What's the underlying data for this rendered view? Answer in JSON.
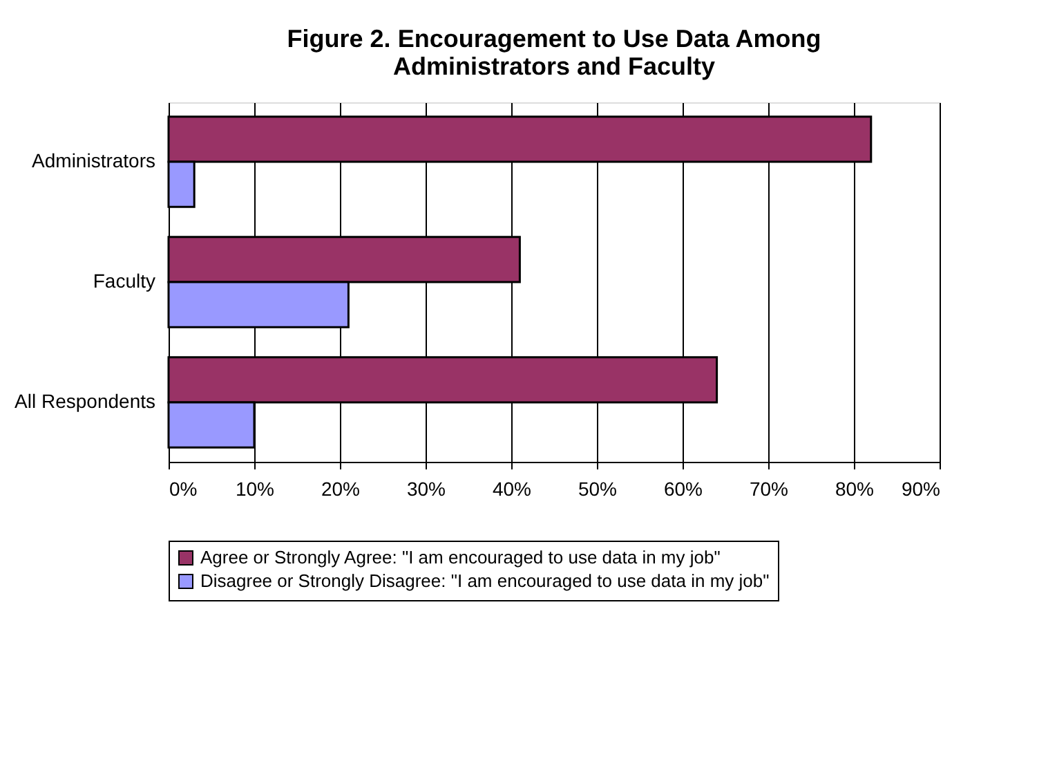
{
  "chart_data": {
    "type": "bar",
    "orientation": "horizontal",
    "title": [
      "Figure 2. Encouragement to Use Data Among",
      "Administrators and Faculty"
    ],
    "categories": [
      "Administrators",
      "Faculty",
      "All Respondents"
    ],
    "series": [
      {
        "name": "Agree or Strongly Agree: \"I am encouraged to use data in my job\"",
        "color": "#993366",
        "values": [
          82,
          41,
          64
        ]
      },
      {
        "name": "Disagree or Strongly Disagree: \"I am encouraged to use data in my job\"",
        "color": "#9999ff",
        "values": [
          3,
          21,
          10
        ]
      }
    ],
    "xlim": [
      0,
      90
    ],
    "xticks": [
      {
        "value": 0,
        "label": "0%"
      },
      {
        "value": 10,
        "label": "10%"
      },
      {
        "value": 20,
        "label": "20%"
      },
      {
        "value": 30,
        "label": "30%"
      },
      {
        "value": 40,
        "label": "40%"
      },
      {
        "value": 50,
        "label": "50%"
      },
      {
        "value": 60,
        "label": "60%"
      },
      {
        "value": 70,
        "label": "70%"
      },
      {
        "value": 80,
        "label": "80%"
      },
      {
        "value": 90,
        "label": "90%"
      }
    ],
    "grid": "x",
    "legend": "bottom"
  }
}
